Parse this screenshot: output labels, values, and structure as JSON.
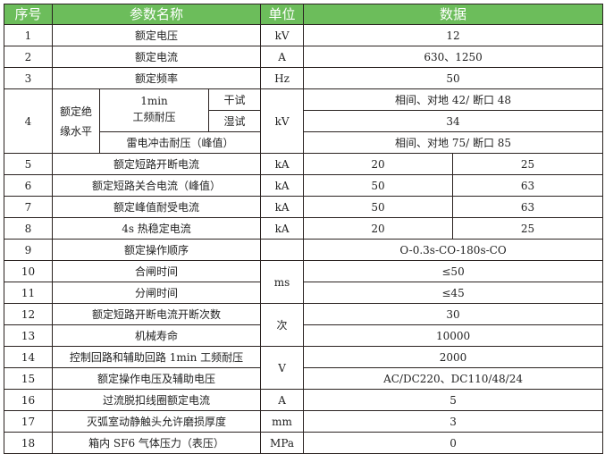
{
  "header": {
    "no": "序号",
    "name": "参数名称",
    "unit": "单位",
    "data": "数据"
  },
  "colors": {
    "header_bg": "#6cbd5b",
    "header_text": "#ffffff"
  },
  "rows": [
    {
      "no": "1",
      "name": "额定电压",
      "unit": "kV",
      "value": "12"
    },
    {
      "no": "2",
      "name": "额定电流",
      "unit": "A",
      "value": "630、1250"
    },
    {
      "no": "3",
      "name": "额定频率",
      "unit": "Hz",
      "value": "50"
    },
    {
      "no": "4",
      "group": "额定绝缘水平",
      "sub1a": "1min",
      "sub1b": "工频耐压",
      "dry": "干试",
      "wet": "湿试",
      "lightning": "雷电冲击耐压（峰值）",
      "unit": "kV",
      "dry_value": "相间、对地 42/ 断口 48",
      "wet_value": "34",
      "lightning_value": "相间、对地 75/ 断口 85"
    },
    {
      "no": "5",
      "name": "额定短路开断电流",
      "unit": "kA",
      "v1": "20",
      "v2": "25"
    },
    {
      "no": "6",
      "name": "额定短路关合电流（峰值）",
      "unit": "kA",
      "v1": "50",
      "v2": "63"
    },
    {
      "no": "7",
      "name": "额定峰值耐受电流",
      "unit": "kA",
      "v1": "50",
      "v2": "63"
    },
    {
      "no": "8",
      "name": "4s 热稳定电流",
      "unit": "kA",
      "v1": "20",
      "v2": "25"
    },
    {
      "no": "9",
      "name": "额定操作顺序",
      "unit": "",
      "value": "O-0.3s-CO-180s-CO"
    },
    {
      "no": "10",
      "name": "合闸时间",
      "unit": "ms",
      "value": "≤50"
    },
    {
      "no": "11",
      "name": "分闸时间",
      "value": "≤45"
    },
    {
      "no": "12",
      "name": "额定短路开断电流开断次数",
      "unit": "次",
      "value": "30"
    },
    {
      "no": "13",
      "name": "机械寿命",
      "value": "10000"
    },
    {
      "no": "14",
      "name": "控制回路和辅助回路 1min 工频耐压",
      "unit": "V",
      "value": "2000"
    },
    {
      "no": "15",
      "name": "额定操作电压及辅助电压",
      "value": "AC/DC220、DC110/48/24"
    },
    {
      "no": "16",
      "name": "过流脱扣线圈额定电流",
      "unit": "A",
      "value": "5"
    },
    {
      "no": "17",
      "name": "灭弧室动静触头允许磨损厚度",
      "unit": "mm",
      "value": "3"
    },
    {
      "no": "18",
      "name": "箱内 SF6 气体压力（表压）",
      "unit": "MPa",
      "value": "0"
    }
  ]
}
